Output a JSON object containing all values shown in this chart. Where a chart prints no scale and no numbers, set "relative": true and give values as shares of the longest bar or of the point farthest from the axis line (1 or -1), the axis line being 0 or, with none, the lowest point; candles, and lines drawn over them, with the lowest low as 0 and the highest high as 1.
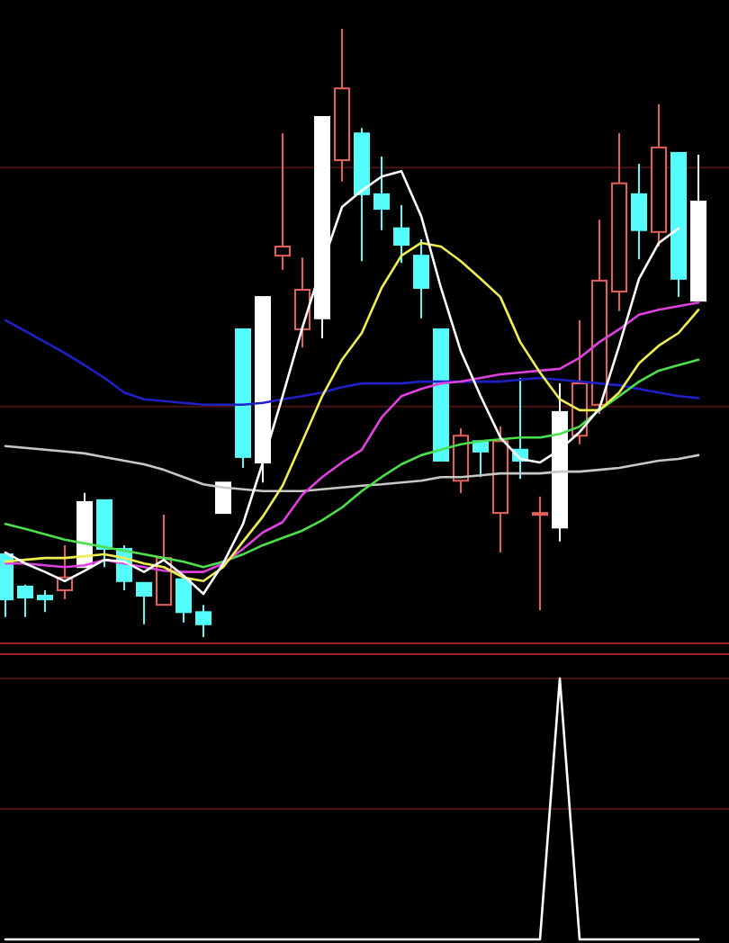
{
  "chart_data": [
    {
      "type": "candlestick",
      "relative": true,
      "categories": [
        null,
        null,
        null,
        null,
        null,
        null,
        null,
        null,
        null,
        null,
        null,
        null,
        null,
        null,
        null,
        null,
        null,
        null,
        null,
        null,
        null,
        null,
        null,
        null,
        null,
        null,
        null,
        null,
        null,
        null,
        null,
        null,
        null,
        null,
        null,
        null
      ],
      "ohlc": [
        [
          0.136,
          0.136,
          0.033,
          0.062
        ],
        [
          0.083,
          0.086,
          0.033,
          0.065
        ],
        [
          0.068,
          0.077,
          0.041,
          0.062
        ],
        [
          0.077,
          0.151,
          0.062,
          0.098
        ],
        [
          0.222,
          0.237,
          0.115,
          0.115
        ],
        [
          0.225,
          0.225,
          0.115,
          0.145
        ],
        [
          0.145,
          0.151,
          0.077,
          0.092
        ],
        [
          0.089,
          0.089,
          0.021,
          0.068
        ],
        [
          0.053,
          0.201,
          0.053,
          0.13
        ],
        [
          0.095,
          0.095,
          0.024,
          0.041
        ],
        [
          0.041,
          0.053,
          0,
          0.021
        ],
        [
          0.254,
          0.254,
          0.204,
          0.204
        ],
        [
          0.506,
          0.506,
          0.278,
          0.296
        ],
        [
          0.559,
          0.559,
          0.254,
          0.287
        ],
        [
          0.627,
          0.828,
          0.604,
          0.642
        ],
        [
          0.506,
          0.624,
          0.476,
          0.571
        ],
        [
          0.855,
          0.855,
          0.491,
          0.524
        ],
        [
          0.784,
          1,
          0.749,
          0.902
        ],
        [
          0.828,
          0.837,
          0.618,
          0.728
        ],
        [
          0.728,
          0.79,
          0.669,
          0.704
        ],
        [
          0.672,
          0.71,
          0.615,
          0.645
        ],
        [
          0.627,
          0.654,
          0.524,
          0.574
        ],
        [
          0.506,
          0.506,
          0.29,
          0.29
        ],
        [
          0.257,
          0.343,
          0.237,
          0.331
        ],
        [
          0.322,
          0.322,
          0.263,
          0.305
        ],
        [
          0.204,
          0.346,
          0.139,
          0.322
        ],
        [
          0.308,
          0.426,
          0.26,
          0.29
        ],
        [
          0.201,
          0.231,
          0.044,
          0.204
        ],
        [
          0.37,
          0.417,
          0.157,
          0.18
        ],
        [
          0.331,
          0.521,
          0.317,
          0.417
        ],
        [
          0.382,
          0.686,
          0.367,
          0.586
        ],
        [
          0.568,
          0.828,
          0.536,
          0.746
        ],
        [
          0.728,
          0.778,
          0.621,
          0.669
        ],
        [
          0.666,
          0.876,
          0.642,
          0.805
        ],
        [
          0.796,
          0.796,
          0.559,
          0.589
        ],
        [
          0.716,
          0.793,
          0.553,
          0.553
        ]
      ],
      "colors": [
        "#54fcfc",
        "#54fcfc",
        "#54fcfc",
        "#e8605a",
        "#ffffff",
        "#54fcfc",
        "#54fcfc",
        "#54fcfc",
        "#e8605a",
        "#54fcfc",
        "#54fcfc",
        "#ffffff",
        "#54fcfc",
        "#ffffff",
        "#e8605a",
        "#e8605a",
        "#ffffff",
        "#e8605a",
        "#54fcfc",
        "#54fcfc",
        "#54fcfc",
        "#54fcfc",
        "#54fcfc",
        "#e8605a",
        "#54fcfc",
        "#e8605a",
        "#54fcfc",
        "#e8605a",
        "#ffffff",
        "#e8605a",
        "#e8605a",
        "#e8605a",
        "#54fcfc",
        "#e8605a",
        "#54fcfc",
        "#ffffff"
      ],
      "series": [
        {
          "type": "line",
          "color": "#c8c8c8",
          "values": [
            0.314,
            0.311,
            0.308,
            0.305,
            0.302,
            0.296,
            0.29,
            0.284,
            0.275,
            0.263,
            0.251,
            0.246,
            0.243,
            0.24,
            0.24,
            0.24,
            0.243,
            0.246,
            0.249,
            0.251,
            0.254,
            0.257,
            0.263,
            0.263,
            0.266,
            0.269,
            0.269,
            0.269,
            0.272,
            0.272,
            0.275,
            0.278,
            0.284,
            0.29,
            0.293,
            0.299
          ]
        },
        {
          "type": "line",
          "color": "#2020c8",
          "values": [
            0.521,
            0.503,
            0.485,
            0.467,
            0.447,
            0.426,
            0.402,
            0.391,
            0.388,
            0.385,
            0.382,
            0.382,
            0.382,
            0.385,
            0.391,
            0.396,
            0.402,
            0.411,
            0.417,
            0.417,
            0.417,
            0.42,
            0.42,
            0.42,
            0.42,
            0.42,
            0.423,
            0.426,
            0.423,
            0.42,
            0.417,
            0.414,
            0.408,
            0.402,
            0.396,
            0.393
          ]
        },
        {
          "type": "line",
          "color": "#4ce04c",
          "values": [
            0.186,
            0.178,
            0.169,
            0.16,
            0.154,
            0.148,
            0.142,
            0.136,
            0.13,
            0.124,
            0.115,
            0.124,
            0.136,
            0.151,
            0.163,
            0.175,
            0.192,
            0.213,
            0.24,
            0.263,
            0.284,
            0.299,
            0.308,
            0.317,
            0.322,
            0.325,
            0.328,
            0.328,
            0.334,
            0.346,
            0.373,
            0.396,
            0.42,
            0.438,
            0.447,
            0.456
          ]
        },
        {
          "type": "line",
          "color": "#e040e0",
          "values": [
            0.121,
            0.121,
            0.118,
            0.115,
            0.118,
            0.127,
            0.121,
            0.115,
            0.109,
            0.107,
            0.107,
            0.121,
            0.145,
            0.172,
            0.189,
            0.234,
            0.263,
            0.287,
            0.308,
            0.361,
            0.396,
            0.408,
            0.417,
            0.42,
            0.426,
            0.432,
            0.435,
            0.438,
            0.441,
            0.459,
            0.485,
            0.506,
            0.53,
            0.538,
            0.544,
            0.55
          ]
        },
        {
          "type": "line",
          "color": "#f0f050",
          "values": [
            0.124,
            0.127,
            0.13,
            0.13,
            0.133,
            0.136,
            0.13,
            0.121,
            0.115,
            0.098,
            0.092,
            0.115,
            0.157,
            0.198,
            0.249,
            0.322,
            0.396,
            0.456,
            0.5,
            0.574,
            0.627,
            0.648,
            0.642,
            0.618,
            0.589,
            0.559,
            0.485,
            0.435,
            0.391,
            0.373,
            0.373,
            0.402,
            0.45,
            0.479,
            0.5,
            0.538
          ]
        },
        {
          "type": "line",
          "color": "#ffffff",
          "values": [
            0.139,
            0.121,
            0.107,
            0.092,
            0.109,
            0.127,
            0.124,
            0.107,
            0.127,
            0.101,
            0.071,
            0.121,
            0.186,
            0.287,
            0.396,
            0.509,
            0.612,
            0.707,
            0.734,
            0.757,
            0.766,
            0.692,
            0.574,
            0.47,
            0.396,
            0.328,
            0.293,
            0.287,
            0.308,
            0.337,
            0.376,
            0.479,
            0.589,
            0.648,
            0.672,
            null
          ]
        }
      ],
      "ref_lines": [
        {
          "axis": "y",
          "value": 0.772,
          "color": "#4a1212"
        },
        {
          "axis": "y",
          "value": 0.379,
          "color": "#4a1212"
        }
      ]
    },
    {
      "type": "line",
      "relative": true,
      "color": "#ffffff",
      "categories": [
        null,
        null,
        null,
        null,
        null,
        null,
        null,
        null,
        null,
        null,
        null,
        null,
        null,
        null,
        null,
        null,
        null,
        null,
        null,
        null,
        null,
        null,
        null,
        null,
        null,
        null,
        null,
        null,
        null,
        null,
        null,
        null,
        null,
        null,
        null,
        null
      ],
      "values": [
        0,
        0,
        0,
        0,
        0,
        0,
        0,
        0,
        0,
        0,
        0,
        0,
        0,
        0,
        0,
        0,
        0,
        0,
        0,
        0,
        0,
        0,
        0,
        0,
        0,
        0,
        0,
        0,
        1,
        0,
        0,
        0,
        0,
        0,
        0,
        0
      ],
      "ref_lines": [
        {
          "axis": "y",
          "value": 1,
          "color": "#4a1212"
        },
        {
          "axis": "y",
          "value": 0.5,
          "color": "#4a1212"
        }
      ]
    }
  ]
}
